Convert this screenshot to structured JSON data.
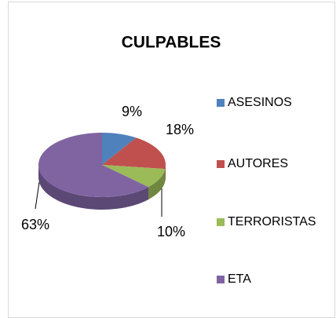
{
  "chart_data": {
    "type": "pie",
    "title": "CULPABLES",
    "categories": [
      "ASESINOS",
      "AUTORES",
      "TERRORISTAS",
      "ETA"
    ],
    "values": [
      9,
      18,
      10,
      63
    ],
    "value_labels": [
      "9%",
      "18%",
      "10%",
      "63%"
    ],
    "colors": [
      "#4f81bd",
      "#c0504d",
      "#9bbb59",
      "#8064a2"
    ],
    "legend": "right"
  }
}
